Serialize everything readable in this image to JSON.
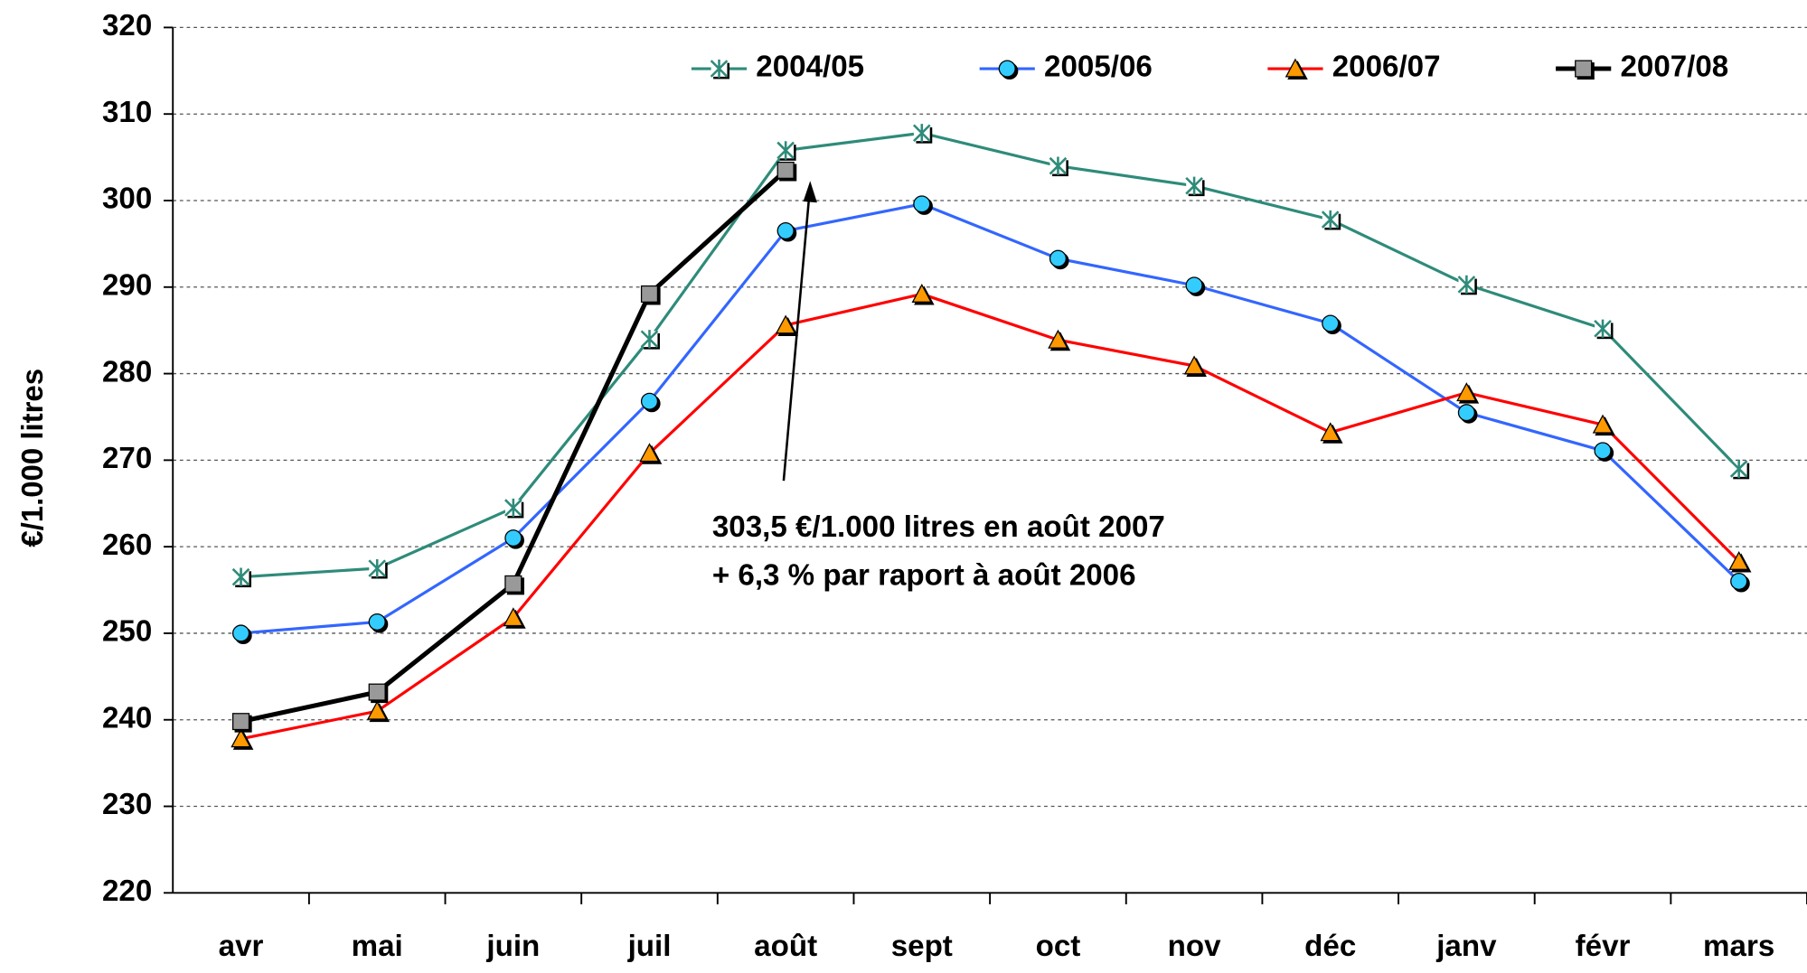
{
  "chart_data": {
    "type": "line",
    "y_label": "€/1.000 litres",
    "categories": [
      "avr",
      "mai",
      "juin",
      "juil",
      "août",
      "sept",
      "oct",
      "nov",
      "déc",
      "janv",
      "févr",
      "mars"
    ],
    "series": [
      {
        "name": "2004/05",
        "color": "#2e8b7a",
        "marker": "star",
        "marker_color": "#2e8b7a",
        "values": [
          256.5,
          257.5,
          264.5,
          284,
          305.8,
          307.8,
          304,
          301.7,
          297.8,
          290.3,
          285.2,
          269
        ]
      },
      {
        "name": "2005/06",
        "color": "#3366ff",
        "marker": "circle",
        "marker_color": "#33ccff",
        "values": [
          250,
          251.3,
          261,
          276.8,
          296.5,
          299.6,
          293.3,
          290.2,
          285.8,
          275.5,
          271.1,
          256
        ]
      },
      {
        "name": "2006/07",
        "color": "#ff0000",
        "marker": "triangle",
        "marker_color": "#ff9900",
        "values": [
          237.8,
          241,
          251.8,
          270.8,
          285.6,
          289.2,
          283.9,
          280.9,
          273.2,
          277.8,
          274.1,
          258.3
        ]
      },
      {
        "name": "2007/08",
        "color": "#000000",
        "marker": "square",
        "marker_color": "#999999",
        "values": [
          239.8,
          243.2,
          255.7,
          289.2,
          303.5,
          null,
          null,
          null,
          null,
          null,
          null,
          null
        ]
      }
    ],
    "ylim": [
      220,
      320
    ],
    "yticks": [
      220,
      230,
      240,
      250,
      260,
      270,
      280,
      290,
      300,
      310,
      320
    ],
    "grid": true,
    "annotation": [
      "303,5 €/1.000 litres en août 2007",
      "+ 6,3 % par raport à août 2006"
    ]
  }
}
